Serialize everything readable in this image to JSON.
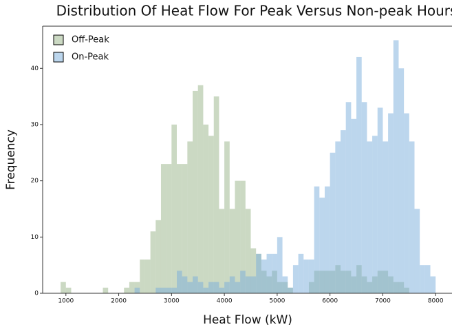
{
  "chart_data": {
    "type": "histogram",
    "title": "Distribution Of Heat Flow For Peak Versus Non-peak Hours",
    "x_label": "Heat Flow (kW)",
    "y_label": "Frequency",
    "bins": [
      900,
      1000,
      1100,
      1200,
      1300,
      1400,
      1500,
      1600,
      1700,
      1800,
      1900,
      2000,
      2100,
      2200,
      2300,
      2400,
      2500,
      2600,
      2700,
      2800,
      2900,
      3000,
      3100,
      3200,
      3300,
      3400,
      3500,
      3600,
      3700,
      3800,
      3900,
      4000,
      4100,
      4200,
      4300,
      4400,
      4500,
      4600,
      4700,
      4800,
      4900,
      5000,
      5100,
      5200,
      5300,
      5400,
      5500,
      5600,
      5700,
      5800,
      5900,
      6000,
      6100,
      6200,
      6300,
      6400,
      6500,
      6600,
      6700,
      6800,
      6900,
      7000,
      7100,
      7200,
      7300,
      7400,
      7500,
      7600,
      7700,
      7800,
      7900,
      8000
    ],
    "series": [
      {
        "name": "Off-Peak",
        "color": "#98b488",
        "values": [
          2,
          1,
          0,
          0,
          0,
          0,
          0,
          0,
          1,
          0,
          0,
          0,
          1,
          2,
          2,
          6,
          6,
          11,
          13,
          23,
          23,
          30,
          23,
          23,
          27,
          36,
          37,
          30,
          28,
          35,
          15,
          27,
          15,
          20,
          20,
          15,
          8,
          7,
          4,
          3,
          4,
          2,
          2,
          1,
          0,
          0,
          0,
          2,
          4,
          4,
          4,
          4,
          5,
          4,
          4,
          3,
          5,
          3,
          2,
          3,
          4,
          4,
          3,
          2,
          2,
          1,
          0,
          0,
          0,
          0,
          0
        ]
      },
      {
        "name": "On-Peak",
        "color": "#7aaedb",
        "values": [
          0,
          0,
          0,
          0,
          0,
          0,
          0,
          0,
          0,
          0,
          0,
          0,
          0,
          0,
          1,
          0,
          0,
          0,
          1,
          1,
          1,
          1,
          4,
          3,
          2,
          3,
          2,
          1,
          2,
          2,
          1,
          2,
          3,
          2,
          4,
          3,
          3,
          7,
          6,
          7,
          7,
          10,
          3,
          1,
          5,
          7,
          6,
          6,
          19,
          17,
          19,
          25,
          27,
          29,
          34,
          31,
          42,
          34,
          27,
          28,
          33,
          27,
          32,
          45,
          40,
          32,
          27,
          15,
          5,
          5,
          3
        ]
      }
    ],
    "xlim": [
      560,
      8310
    ],
    "ylim": [
      0,
      47.5
    ],
    "xticks": [
      1000,
      2000,
      3000,
      4000,
      5000,
      6000,
      7000,
      8000
    ],
    "yticks": [
      0,
      10,
      20,
      30,
      40
    ],
    "legend": "upper left"
  }
}
